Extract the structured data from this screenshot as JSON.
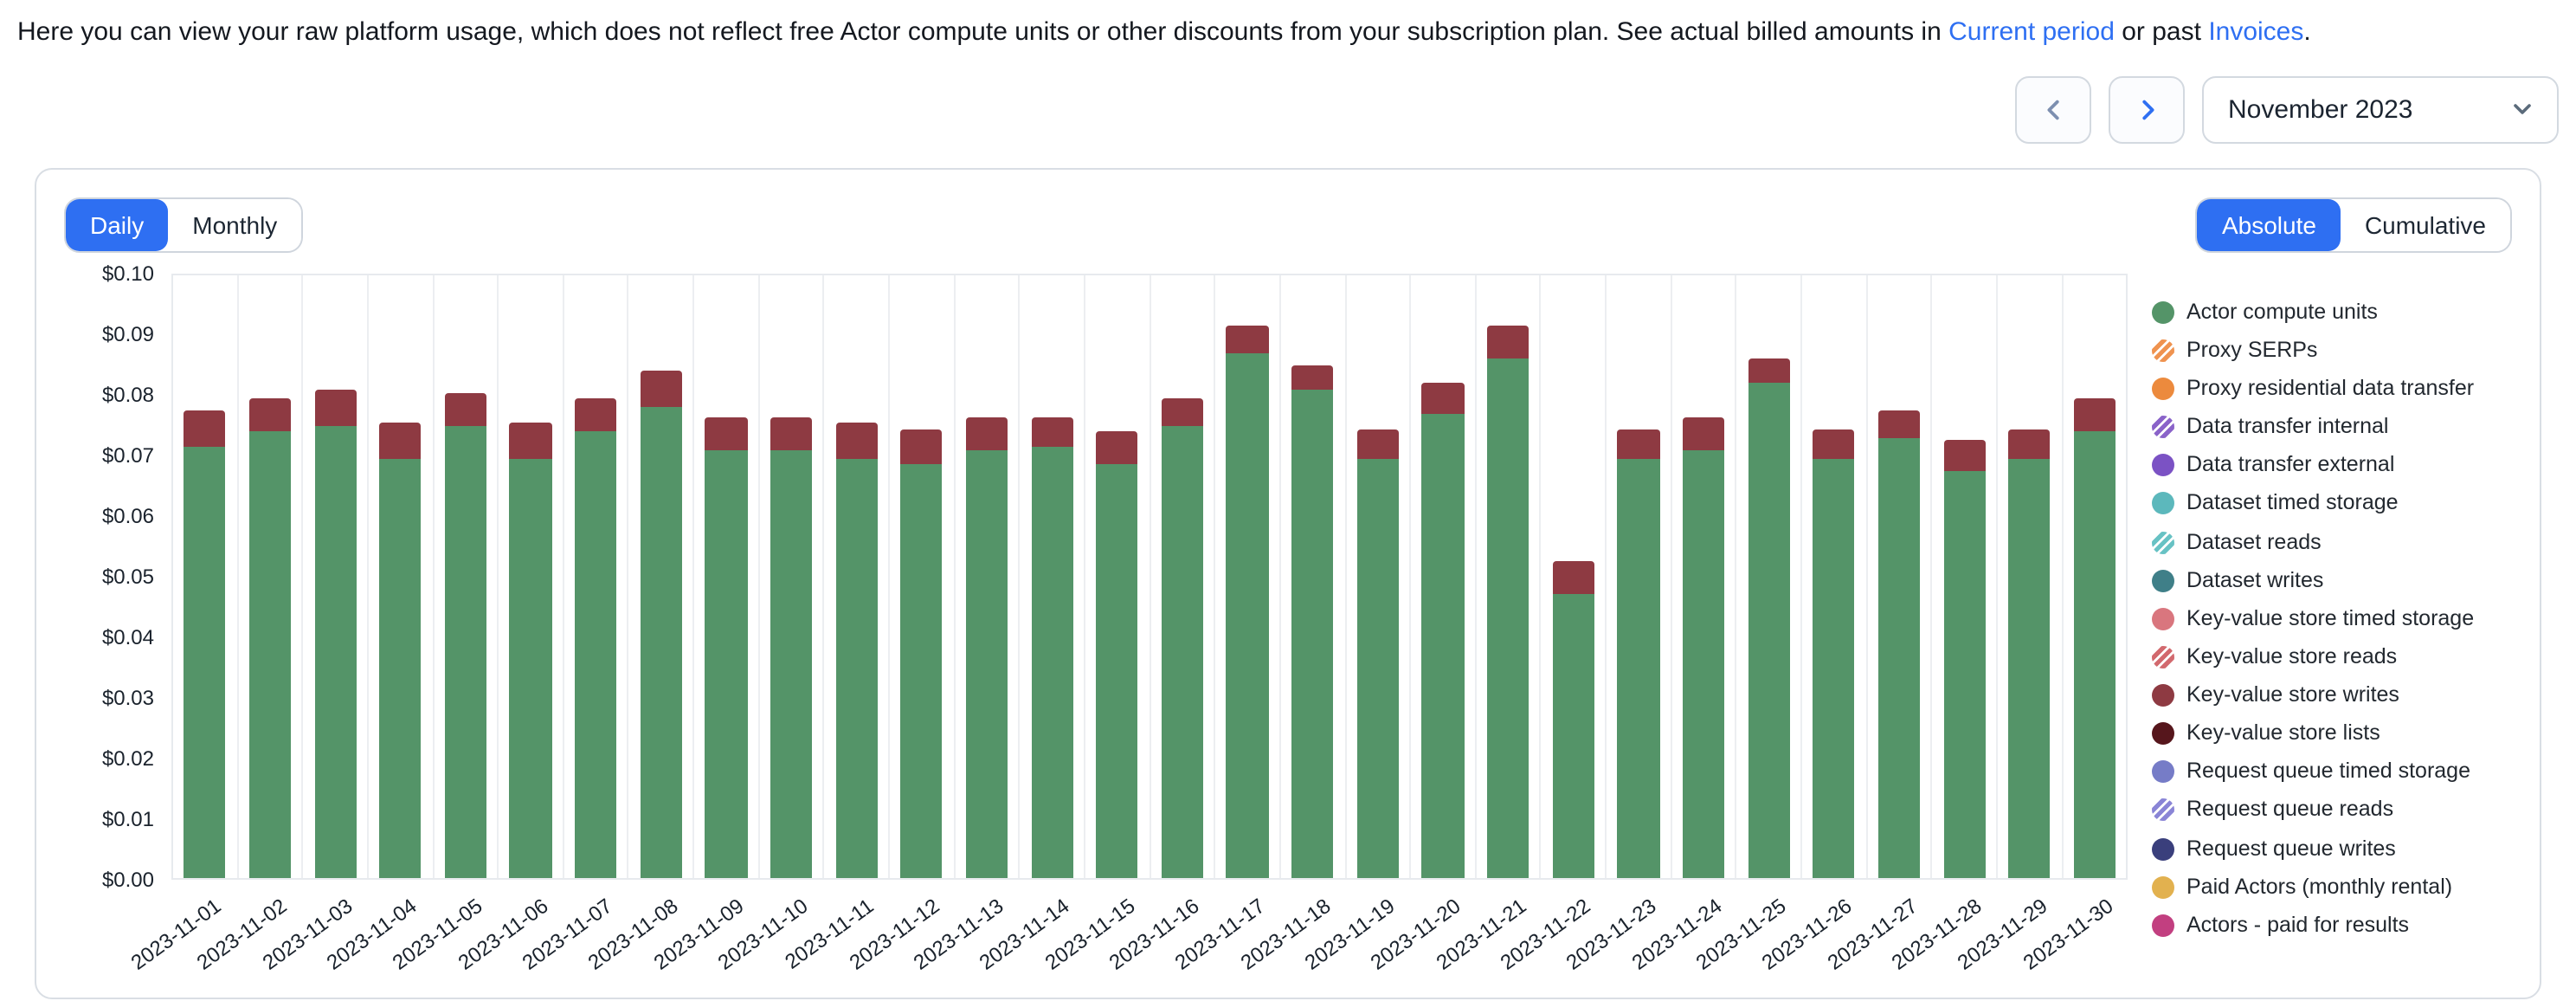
{
  "header": {
    "description_before": "Here you can view your raw platform usage, which does not reflect free Actor compute units or other discounts from your subscription plan. See actual billed amounts in ",
    "link_current_period": "Current period",
    "description_middle": " or past ",
    "link_invoices": "Invoices",
    "description_after": "."
  },
  "period_nav": {
    "selected_month": "November 2023"
  },
  "toolbar": {
    "granularity": [
      {
        "label": "Daily",
        "active": true
      },
      {
        "label": "Monthly",
        "active": false
      }
    ],
    "mode": [
      {
        "label": "Absolute",
        "active": true
      },
      {
        "label": "Cumulative",
        "active": false
      }
    ]
  },
  "colors": {
    "accent_blue": "#2e6ff2",
    "bar_green": "#549468",
    "bar_dark_red": "#8e3a42",
    "card_border": "#d9dee4",
    "gridline": "#eceef1"
  },
  "chart_data": {
    "type": "bar",
    "stacked": true,
    "title": "",
    "xlabel": "",
    "ylabel": "",
    "ylim": [
      0,
      0.1
    ],
    "ytick_step": 0.01,
    "ytick_format": "$0.00",
    "grid": "vertical-only",
    "legend_position": "right",
    "x": [
      "2023-11-01",
      "2023-11-02",
      "2023-11-03",
      "2023-11-04",
      "2023-11-05",
      "2023-11-06",
      "2023-11-07",
      "2023-11-08",
      "2023-11-09",
      "2023-11-10",
      "2023-11-11",
      "2023-11-12",
      "2023-11-13",
      "2023-11-14",
      "2023-11-15",
      "2023-11-16",
      "2023-11-17",
      "2023-11-18",
      "2023-11-19",
      "2023-11-20",
      "2023-11-21",
      "2023-11-22",
      "2023-11-23",
      "2023-11-24",
      "2023-11-25",
      "2023-11-26",
      "2023-11-27",
      "2023-11-28",
      "2023-11-29",
      "2023-11-30"
    ],
    "series": [
      {
        "name": "Actor compute units",
        "values": [
          0.0715,
          0.074,
          0.075,
          0.0695,
          0.075,
          0.0695,
          0.074,
          0.078,
          0.071,
          0.071,
          0.0695,
          0.0685,
          0.071,
          0.0715,
          0.0685,
          0.075,
          0.087,
          0.081,
          0.0695,
          0.077,
          0.086,
          0.047,
          0.0695,
          0.071,
          0.082,
          0.0695,
          0.073,
          0.0675,
          0.0695,
          0.074
        ]
      },
      {
        "name": "Key-value store writes",
        "values": [
          0.006,
          0.0055,
          0.006,
          0.006,
          0.0055,
          0.006,
          0.0055,
          0.006,
          0.0055,
          0.0055,
          0.006,
          0.006,
          0.0055,
          0.005,
          0.0055,
          0.0045,
          0.0045,
          0.004,
          0.005,
          0.005,
          0.0055,
          0.0055,
          0.005,
          0.0055,
          0.004,
          0.005,
          0.0045,
          0.005,
          0.005,
          0.0055
        ]
      }
    ],
    "legend": [
      {
        "name": "Actor compute units",
        "color": "#549468",
        "striped": false
      },
      {
        "name": "Proxy SERPs",
        "color": "#ef9350",
        "striped": true
      },
      {
        "name": "Proxy residential data transfer",
        "color": "#ec8a3d",
        "striped": false
      },
      {
        "name": "Data transfer internal",
        "color": "#8a63c9",
        "striped": true
      },
      {
        "name": "Data transfer external",
        "color": "#7b52c4",
        "striped": false
      },
      {
        "name": "Dataset timed storage",
        "color": "#5cb8bc",
        "striped": false
      },
      {
        "name": "Dataset reads",
        "color": "#67c2c4",
        "striped": true
      },
      {
        "name": "Dataset writes",
        "color": "#3f7f88",
        "striped": false
      },
      {
        "name": "Key-value store timed storage",
        "color": "#d9767e",
        "striped": false
      },
      {
        "name": "Key-value store reads",
        "color": "#d2696e",
        "striped": true
      },
      {
        "name": "Key-value store writes",
        "color": "#8e3a42",
        "striped": false
      },
      {
        "name": "Key-value store lists",
        "color": "#56161c",
        "striped": false
      },
      {
        "name": "Request queue timed storage",
        "color": "#767cc7",
        "striped": false
      },
      {
        "name": "Request queue reads",
        "color": "#8a85d6",
        "striped": true
      },
      {
        "name": "Request queue writes",
        "color": "#3a3f7c",
        "striped": false
      },
      {
        "name": "Paid Actors (monthly rental)",
        "color": "#e2b14f",
        "striped": false
      },
      {
        "name": "Actors - paid for results",
        "color": "#c23f80",
        "striped": false
      }
    ]
  }
}
